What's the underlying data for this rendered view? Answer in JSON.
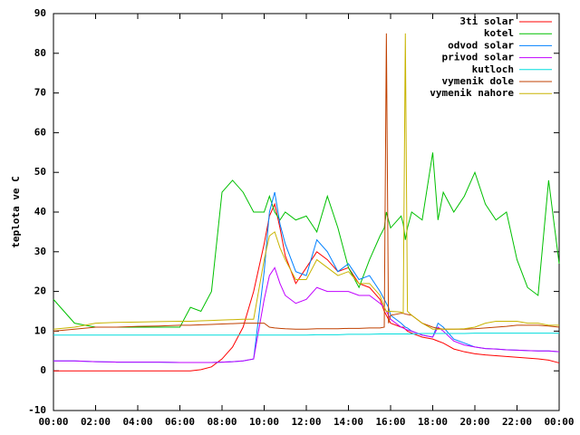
{
  "chart_data": {
    "type": "line",
    "y_label": "teplota ve C",
    "legend": "top-right",
    "x": [
      0,
      1,
      2,
      3,
      4,
      5,
      6,
      6.5,
      7,
      7.5,
      8,
      8.5,
      9,
      9.5,
      10,
      10.25,
      10.5,
      10.75,
      11,
      11.5,
      12,
      12.5,
      13,
      13.5,
      14,
      14.5,
      15,
      15.5,
      15.7,
      15.8,
      15.9,
      16,
      16.5,
      16.6,
      16.7,
      16.8,
      17,
      17.5,
      18,
      18.25,
      18.5,
      19,
      19.5,
      20,
      20.5,
      21,
      21.5,
      22,
      22.5,
      23,
      23.5,
      24
    ],
    "xlim": [
      0,
      24
    ],
    "xticks": [
      {
        "value": 0,
        "label": "00:00"
      },
      {
        "value": 2,
        "label": "02:00"
      },
      {
        "value": 4,
        "label": "04:00"
      },
      {
        "value": 6,
        "label": "06:00"
      },
      {
        "value": 8,
        "label": "08:00"
      },
      {
        "value": 10,
        "label": "10:00"
      },
      {
        "value": 12,
        "label": "12:00"
      },
      {
        "value": 14,
        "label": "14:00"
      },
      {
        "value": 16,
        "label": "16:00"
      },
      {
        "value": 18,
        "label": "18:00"
      },
      {
        "value": 20,
        "label": "20:00"
      },
      {
        "value": 22,
        "label": "22:00"
      },
      {
        "value": 24,
        "label": "00:00"
      }
    ],
    "ylim": [
      -10,
      90
    ],
    "yticks": [
      -10,
      0,
      10,
      20,
      30,
      40,
      50,
      60,
      70,
      80,
      90
    ],
    "series": [
      {
        "name": "3ti solar",
        "color": "#ff0000",
        "values": [
          0,
          0,
          0,
          0,
          0,
          0,
          0,
          0,
          0.3,
          1,
          3,
          6,
          11,
          20,
          32,
          39,
          42,
          36,
          29,
          22,
          26,
          30,
          28,
          25,
          26,
          22,
          21,
          18,
          15,
          14,
          13,
          12,
          11,
          11,
          10.5,
          10,
          9.5,
          8.5,
          8,
          7.5,
          7,
          5.5,
          4.8,
          4.3,
          4,
          3.8,
          3.6,
          3.4,
          3.2,
          3,
          2.7,
          2
        ]
      },
      {
        "name": "kotel",
        "color": "#00c000",
        "values": [
          18,
          12,
          11,
          11,
          11,
          11,
          11,
          16,
          15,
          20,
          45,
          48,
          45,
          40,
          40,
          44,
          40,
          38,
          40,
          38,
          39,
          35,
          44,
          36,
          26,
          21,
          28,
          34,
          36,
          40,
          38,
          36,
          39,
          37,
          33,
          36,
          40,
          38,
          55,
          38,
          45,
          40,
          44,
          50,
          42,
          38,
          40,
          28,
          21,
          19,
          48,
          27
        ]
      },
      {
        "name": "odvod solar",
        "color": "#0080ff",
        "values": [
          2.5,
          2.5,
          2.3,
          2.2,
          2.2,
          2.2,
          2.1,
          2.1,
          2.1,
          2.1,
          2.2,
          2.3,
          2.5,
          3,
          25,
          40,
          45,
          37,
          32,
          25,
          24,
          33,
          30,
          25,
          27,
          23,
          24,
          20,
          18,
          17,
          16,
          14,
          12,
          11.5,
          11,
          10.8,
          10,
          9,
          8.5,
          12,
          11,
          8,
          7,
          6,
          5.6,
          5.5,
          5.3,
          5.2,
          5.1,
          5,
          5,
          4.8
        ]
      },
      {
        "name": "privod solar",
        "color": "#c000ff",
        "values": [
          2.5,
          2.5,
          2.3,
          2.2,
          2.2,
          2.2,
          2.1,
          2.1,
          2.1,
          2.1,
          2.2,
          2.3,
          2.5,
          3,
          18,
          24,
          26,
          22,
          19,
          17,
          18,
          21,
          20,
          20,
          20,
          19,
          19,
          17,
          16,
          15,
          14,
          13,
          11,
          10.8,
          10.5,
          10.3,
          10,
          9,
          8.5,
          11,
          10,
          7.5,
          6.5,
          6,
          5.6,
          5.5,
          5.3,
          5.2,
          5.1,
          5,
          5,
          4.8
        ]
      },
      {
        "name": "kutloch",
        "color": "#00dddd",
        "values": [
          9,
          9,
          9,
          9,
          9,
          9,
          9,
          9,
          9,
          9,
          9,
          9,
          9,
          9,
          9,
          9,
          9,
          9,
          9,
          9,
          9,
          9.1,
          9.1,
          9.1,
          9.2,
          9.2,
          9.2,
          9.3,
          9.3,
          9.3,
          9.3,
          9.3,
          9.3,
          9.3,
          9.3,
          9.3,
          9.3,
          9.4,
          9.4,
          9.4,
          9.4,
          9.4,
          9.4,
          9.5,
          9.5,
          9.5,
          9.5,
          9.5,
          9.5,
          9.5,
          9.5,
          9.5
        ]
      },
      {
        "name": "vymenik dole",
        "color": "#c04000",
        "values": [
          10,
          10.5,
          11,
          11,
          11.2,
          11.3,
          11.5,
          11.5,
          11.6,
          11.7,
          11.8,
          11.9,
          12,
          12,
          12,
          11,
          10.8,
          10.7,
          10.6,
          10.5,
          10.5,
          10.6,
          10.6,
          10.6,
          10.7,
          10.7,
          10.8,
          10.8,
          11,
          85,
          12,
          14,
          14.5,
          14.5,
          14.3,
          14.2,
          14,
          12,
          11,
          10.7,
          10.5,
          10.5,
          10.5,
          10.6,
          10.8,
          11,
          11.2,
          11.5,
          11.5,
          11.5,
          11.3,
          11
        ]
      },
      {
        "name": "vymenik nahore",
        "color": "#c8b400",
        "values": [
          10.5,
          11,
          12,
          12.2,
          12.3,
          12.4,
          12.5,
          12.5,
          12.6,
          12.7,
          12.8,
          12.9,
          13,
          13,
          28,
          34,
          35,
          31,
          28,
          23,
          23,
          28,
          26,
          24,
          25,
          22,
          22,
          19,
          16,
          15,
          15,
          15,
          14.8,
          14.5,
          85,
          15,
          14,
          12,
          10.5,
          10.5,
          10.5,
          10.5,
          10.6,
          11,
          12,
          12.5,
          12.5,
          12.5,
          12,
          12,
          11.5,
          11.5
        ]
      }
    ]
  }
}
